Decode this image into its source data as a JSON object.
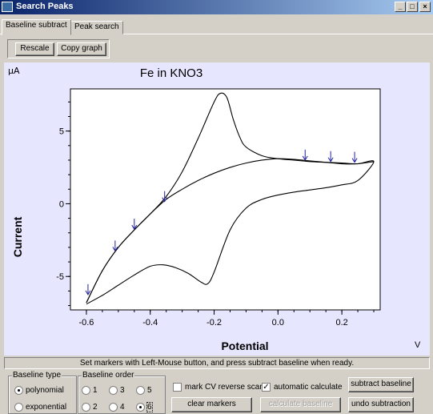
{
  "window": {
    "title": "Search Peaks"
  },
  "tabs": [
    {
      "label": "Baseline subtract",
      "active": true
    },
    {
      "label": "Peak search",
      "active": false
    }
  ],
  "toolbar": {
    "rescale_label": "Rescale",
    "copy_graph_label": "Copy graph"
  },
  "chart_data": {
    "type": "line",
    "title": "Fe in KNO3",
    "xlabel": "Potential",
    "ylabel": "Current",
    "y_unit": "μA",
    "x_unit": "V",
    "xlim": [
      -0.65,
      0.32
    ],
    "ylim": [
      -7.3,
      7.9
    ],
    "x_ticks": [
      "-0.6",
      "-0.4",
      "-0.2",
      "0.0",
      "0.2"
    ],
    "x_tick_values": [
      -0.6,
      -0.4,
      -0.2,
      0.0,
      0.2
    ],
    "y_ticks": [
      "5",
      "0",
      "-5"
    ],
    "y_tick_values": [
      5,
      0,
      -5
    ],
    "series": [
      {
        "color": "#000000",
        "x": [
          -0.6,
          -0.55,
          -0.5,
          -0.45,
          -0.4,
          -0.35,
          -0.3,
          -0.25,
          -0.2,
          -0.18,
          -0.16,
          -0.14,
          -0.12,
          -0.1,
          -0.05,
          0.0,
          0.05,
          0.1,
          0.15,
          0.2,
          0.25,
          0.3,
          0.25,
          0.2,
          0.15,
          0.1,
          0.05,
          0.0,
          -0.05,
          -0.1,
          -0.15,
          -0.2,
          -0.22,
          -0.24,
          -0.28,
          -0.32,
          -0.36,
          -0.4,
          -0.45,
          -0.5,
          -0.55,
          -0.6
        ],
        "y": [
          -6.8,
          -4.6,
          -3.0,
          -1.8,
          -0.7,
          0.5,
          2.2,
          4.5,
          7.0,
          7.6,
          7.3,
          5.8,
          4.6,
          3.9,
          3.3,
          3.1,
          3.0,
          2.9,
          2.85,
          2.8,
          2.75,
          2.9,
          1.6,
          1.3,
          1.1,
          0.95,
          0.8,
          0.6,
          0.3,
          -0.3,
          -1.8,
          -4.7,
          -5.5,
          -5.4,
          -4.8,
          -4.4,
          -4.2,
          -4.3,
          -4.9,
          -5.6,
          -6.3,
          -6.9
        ]
      },
      {
        "color": "#000000",
        "x": [
          -0.6,
          -0.55,
          -0.5,
          -0.45,
          -0.4,
          -0.35,
          -0.3,
          -0.25,
          -0.2,
          -0.15,
          -0.1,
          -0.05,
          0.0,
          0.05,
          0.1,
          0.15,
          0.2,
          0.25,
          0.3
        ],
        "y": [
          -6.8,
          -4.6,
          -3.0,
          -1.8,
          -0.7,
          0.3,
          1.0,
          1.6,
          2.1,
          2.5,
          2.8,
          3.0,
          3.1,
          3.05,
          2.95,
          2.85,
          2.75,
          2.75,
          2.9
        ]
      }
    ],
    "markers": {
      "color": "#2020a0",
      "x": [
        -0.595,
        -0.51,
        -0.45,
        -0.355,
        0.085,
        0.165,
        0.24
      ],
      "y": [
        -6.3,
        -3.3,
        -1.8,
        0.1,
        2.95,
        2.85,
        2.8
      ]
    }
  },
  "status": {
    "message": "Set markers with Left-Mouse button, and press subtract baseline when ready."
  },
  "baseline_type": {
    "label": "Baseline type",
    "options": [
      {
        "label": "polynomial",
        "selected": true
      },
      {
        "label": "exponential",
        "selected": false
      }
    ]
  },
  "baseline_order": {
    "label": "Baseline order",
    "options": [
      {
        "label": "1",
        "selected": false
      },
      {
        "label": "3",
        "selected": false
      },
      {
        "label": "5",
        "selected": false
      },
      {
        "label": "2",
        "selected": false
      },
      {
        "label": "4",
        "selected": false
      },
      {
        "label": "6",
        "selected": true
      }
    ]
  },
  "options": {
    "mark_cv_reverse_scan": {
      "label": "mark CV reverse scan",
      "checked": false
    },
    "automatic_calculate": {
      "label": "automatic calculate",
      "checked": true
    }
  },
  "buttons": {
    "clear_markers": "clear markers",
    "calculate_baseline": "calculate baseline",
    "subtract_baseline": "subtract baseline",
    "undo_subtraction": "undo subtraction"
  },
  "title_buttons": {
    "minimize": "_",
    "maximize": "□",
    "close": "×"
  }
}
